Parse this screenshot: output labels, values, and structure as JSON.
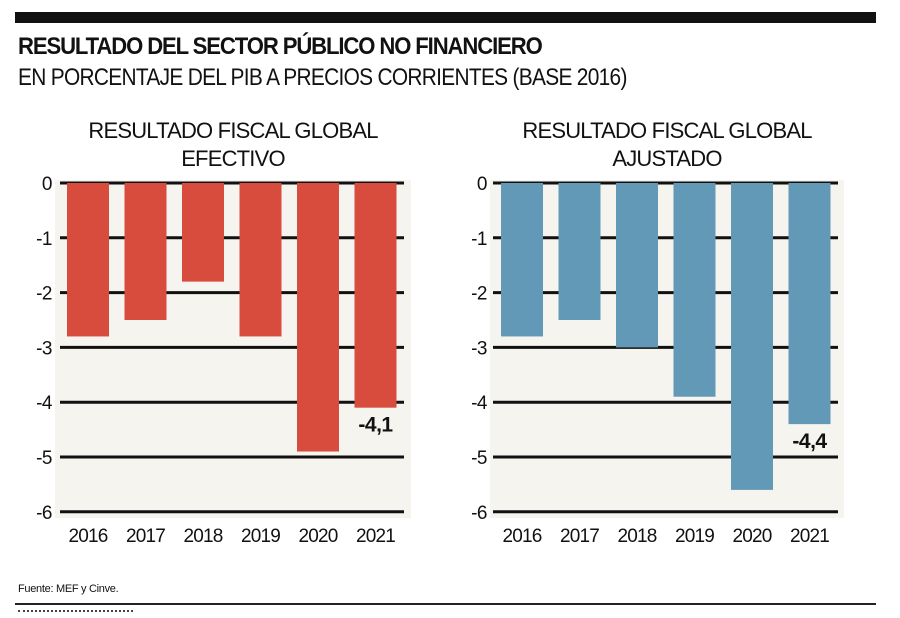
{
  "header": {
    "title": "RESULTADO DEL SECTOR PÚBLICO NO FINANCIERO",
    "subtitle": "EN PORCENTAJE DEL PIB A PRECIOS CORRIENTES (BASE 2016)"
  },
  "footer": {
    "source": "Fuente: MEF y Cinve."
  },
  "colors": {
    "efectivo": "#d84c3e",
    "ajustado": "#6299b6",
    "panel_bg": "#f5f4ee",
    "grid": "#111111"
  },
  "chart_data": [
    {
      "type": "bar",
      "title_line1": "RESULTADO FISCAL GLOBAL",
      "title_line2": "EFECTIVO",
      "categories": [
        "2016",
        "2017",
        "2018",
        "2019",
        "2020",
        "2021"
      ],
      "values": [
        -2.8,
        -2.5,
        -1.8,
        -2.8,
        -4.9,
        -4.1
      ],
      "yticks": [
        "0",
        "-1",
        "-2",
        "-3",
        "-4",
        "-5",
        "-6"
      ],
      "ylim": [
        -6,
        0
      ],
      "grid": true,
      "annotation": {
        "category": "2021",
        "label": "-4,1"
      },
      "xlabel": "",
      "ylabel": ""
    },
    {
      "type": "bar",
      "title_line1": "RESULTADO FISCAL GLOBAL",
      "title_line2": "AJUSTADO",
      "categories": [
        "2016",
        "2017",
        "2018",
        "2019",
        "2020",
        "2021"
      ],
      "values": [
        -2.8,
        -2.5,
        -3.0,
        -3.9,
        -5.6,
        -4.4
      ],
      "yticks": [
        "0",
        "-1",
        "-2",
        "-3",
        "-4",
        "-5",
        "-6"
      ],
      "ylim": [
        -6,
        0
      ],
      "grid": true,
      "annotation": {
        "category": "2021",
        "label": "-4,4"
      },
      "xlabel": "",
      "ylabel": ""
    }
  ]
}
